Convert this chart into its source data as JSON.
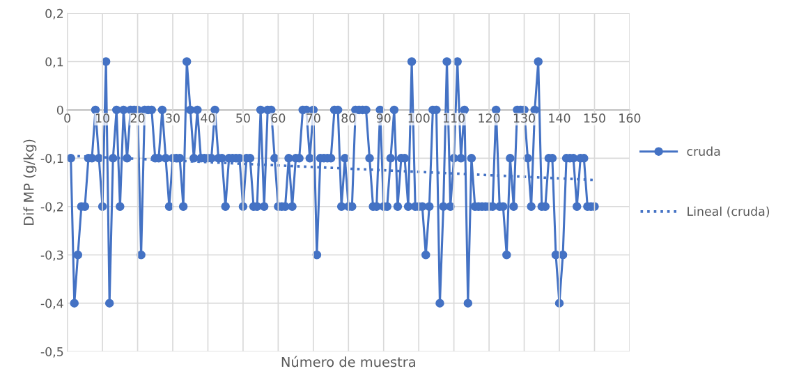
{
  "chart_data": {
    "type": "line",
    "xlabel": "Número de muestra",
    "ylabel": "Dif MP (g/kg)",
    "x": [
      1,
      2,
      3,
      4,
      5,
      6,
      7,
      8,
      9,
      10,
      11,
      12,
      13,
      14,
      15,
      16,
      17,
      18,
      19,
      20,
      21,
      22,
      23,
      24,
      25,
      26,
      27,
      28,
      29,
      30,
      31,
      32,
      33,
      34,
      35,
      36,
      37,
      38,
      39,
      40,
      41,
      42,
      43,
      44,
      45,
      46,
      47,
      48,
      49,
      50,
      51,
      52,
      53,
      54,
      55,
      56,
      57,
      58,
      59,
      60,
      61,
      62,
      63,
      64,
      65,
      66,
      67,
      68,
      69,
      70,
      71,
      72,
      73,
      74,
      75,
      76,
      77,
      78,
      79,
      80,
      81,
      82,
      83,
      84,
      85,
      86,
      87,
      88,
      89,
      90,
      91,
      92,
      93,
      94,
      95,
      96,
      97,
      98,
      99,
      100,
      101,
      102,
      103,
      104,
      105,
      106,
      107,
      108,
      109,
      110,
      111,
      112,
      113,
      114,
      115,
      116,
      117,
      118,
      119,
      120,
      121,
      122,
      123,
      124,
      125,
      126,
      127,
      128,
      129,
      130,
      131,
      132,
      133,
      134,
      135,
      136,
      137,
      138,
      139,
      140,
      141,
      142,
      143,
      144,
      145,
      146,
      147,
      148,
      149,
      150
    ],
    "series": [
      {
        "name": "cruda",
        "color": "#4472c4",
        "marker": "circle",
        "line_style": "solid",
        "values": [
          -0.1,
          -0.4,
          -0.3,
          -0.2,
          -0.2,
          -0.1,
          -0.1,
          0,
          -0.1,
          -0.2,
          0.1,
          -0.4,
          -0.1,
          0,
          -0.2,
          0,
          -0.1,
          0,
          0,
          0,
          -0.3,
          0,
          0,
          0,
          -0.1,
          -0.1,
          0,
          -0.1,
          -0.2,
          -0.1,
          -0.1,
          -0.1,
          -0.2,
          0.1,
          0,
          -0.1,
          0,
          -0.1,
          -0.1,
          -0.1,
          -0.1,
          0,
          -0.1,
          -0.1,
          -0.2,
          -0.1,
          -0.1,
          -0.1,
          -0.1,
          -0.2,
          -0.1,
          -0.1,
          -0.2,
          -0.2,
          0,
          -0.2,
          0,
          0,
          -0.1,
          -0.2,
          -0.2,
          -0.2,
          -0.1,
          -0.2,
          -0.1,
          -0.1,
          0,
          0,
          -0.1,
          0,
          -0.3,
          -0.1,
          -0.1,
          -0.1,
          -0.1,
          0,
          0,
          -0.2,
          -0.1,
          -0.2,
          -0.2,
          0,
          0,
          0,
          0,
          -0.1,
          -0.2,
          -0.2,
          0,
          -0.2,
          -0.2,
          -0.1,
          0,
          -0.2,
          -0.1,
          -0.1,
          -0.2,
          0.1,
          -0.2,
          -0.2,
          -0.2,
          -0.3,
          -0.2,
          0,
          0,
          -0.4,
          -0.2,
          0.1,
          -0.2,
          -0.1,
          0.1,
          -0.1,
          0,
          -0.4,
          -0.1,
          -0.2,
          -0.2,
          -0.2,
          -0.2,
          -0.2,
          -0.2,
          0,
          -0.2,
          -0.2,
          -0.3,
          -0.1,
          -0.2,
          0,
          0,
          0,
          -0.1,
          -0.2,
          0,
          0.1,
          -0.2,
          -0.2,
          -0.1,
          -0.1,
          -0.3,
          -0.4,
          -0.3,
          -0.1,
          -0.1,
          -0.1,
          -0.2,
          -0.1,
          -0.1,
          -0.2,
          -0.2,
          -0.2
        ]
      },
      {
        "name": "Lineal (cruda)",
        "color": "#4472c4",
        "type": "line",
        "marker": "none",
        "line_style": "dotted",
        "x": [
          1,
          150
        ],
        "values": [
          -0.095,
          -0.145
        ]
      }
    ],
    "xlim": [
      0,
      160
    ],
    "xticks": [
      0,
      10,
      20,
      30,
      40,
      50,
      60,
      70,
      80,
      90,
      100,
      110,
      120,
      130,
      140,
      150,
      160
    ],
    "ylim": [
      -0.5,
      0.2
    ],
    "yticks": [
      {
        "value": -0.5,
        "label": "-0,5"
      },
      {
        "value": -0.4,
        "label": "-0,4"
      },
      {
        "value": -0.3,
        "label": "-0,3"
      },
      {
        "value": -0.2,
        "label": "-0,2"
      },
      {
        "value": -0.1,
        "label": "-0,1"
      },
      {
        "value": 0,
        "label": "0"
      },
      {
        "value": 0.1,
        "label": "0,1"
      },
      {
        "value": 0.2,
        "label": "0,2"
      }
    ],
    "grid": true,
    "legend": "right"
  }
}
